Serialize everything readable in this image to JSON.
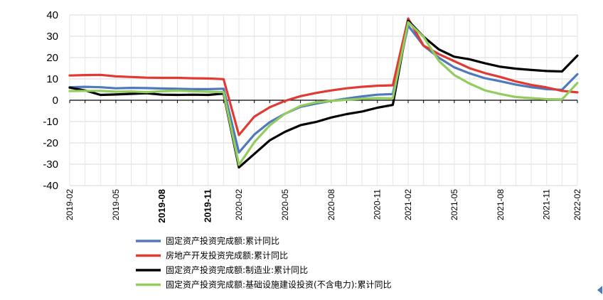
{
  "chart_data": {
    "type": "line",
    "x": [
      "2019-02",
      "2019-03",
      "2019-04",
      "2019-05",
      "2019-06",
      "2019-07",
      "2019-08",
      "2019-09",
      "2019-10",
      "2019-11",
      "2019-12",
      "2020-02",
      "2020-03",
      "2020-04",
      "2020-05",
      "2020-06",
      "2020-07",
      "2020-08",
      "2020-09",
      "2020-10",
      "2020-11",
      "2020-12",
      "2021-02",
      "2021-03",
      "2021-04",
      "2021-05",
      "2021-06",
      "2021-07",
      "2021-08",
      "2021-09",
      "2021-10",
      "2021-11",
      "2021-12",
      "2022-02"
    ],
    "x_tick_labels": [
      "2019-02",
      "2019-05",
      "2019-08",
      "2019-11",
      "2020-02",
      "2020-05",
      "2020-08",
      "2020-11",
      "2021-02",
      "2021-05",
      "2021-08",
      "2021-11",
      "2022-02"
    ],
    "bold_tick_labels": [
      "2019-08",
      "2019-11"
    ],
    "ylim": [
      -40,
      40
    ],
    "y_ticks": [
      -40,
      -30,
      -20,
      -10,
      0,
      10,
      20,
      30,
      40
    ],
    "grid": true,
    "legend_position": "bottom",
    "series": [
      {
        "name": "固定资产投资完成额:累计同比",
        "color": "#4f79bd",
        "values": [
          6.1,
          6.3,
          6.1,
          5.6,
          5.8,
          5.7,
          5.5,
          5.4,
          5.2,
          5.2,
          5.4,
          -24.5,
          -16.1,
          -10.3,
          -6.3,
          -3.1,
          -1.6,
          -0.3,
          0.8,
          1.8,
          2.6,
          2.9,
          35.0,
          25.6,
          19.9,
          15.4,
          12.6,
          10.3,
          8.9,
          7.3,
          6.1,
          5.2,
          4.9,
          12.2
        ]
      },
      {
        "name": "房地产开发投资完成额:累计同比",
        "color": "#e03a32",
        "values": [
          11.6,
          11.8,
          11.9,
          11.2,
          10.9,
          10.6,
          10.5,
          10.5,
          10.3,
          10.2,
          9.9,
          -16.3,
          -7.7,
          -3.3,
          -0.3,
          1.9,
          3.4,
          4.6,
          5.6,
          6.3,
          6.8,
          7.0,
          38.3,
          25.6,
          21.6,
          18.3,
          15.0,
          12.7,
          10.9,
          8.8,
          7.2,
          6.0,
          4.4,
          3.7
        ]
      },
      {
        "name": "固定资产投资完成额:制造业:累计同比",
        "color": "#000000",
        "values": [
          5.9,
          4.6,
          2.5,
          2.7,
          3.0,
          3.3,
          2.6,
          2.5,
          2.6,
          2.5,
          3.1,
          -31.5,
          -25.2,
          -18.8,
          -14.8,
          -11.7,
          -10.2,
          -8.1,
          -6.5,
          -5.3,
          -3.5,
          -2.2,
          37.3,
          29.8,
          23.8,
          20.4,
          19.2,
          17.3,
          15.7,
          14.8,
          14.2,
          13.7,
          13.5,
          20.9
        ]
      },
      {
        "name": "固定资产投资完成额:基础设施建设投资(不含电力):累计同比",
        "color": "#92cc5e",
        "values": [
          4.3,
          4.4,
          4.4,
          4.0,
          4.1,
          3.8,
          4.2,
          4.5,
          4.2,
          4.0,
          3.8,
          -30.3,
          -19.7,
          -11.8,
          -6.3,
          -2.7,
          -1.0,
          -0.3,
          0.2,
          0.7,
          1.0,
          0.9,
          36.6,
          29.7,
          18.4,
          11.8,
          7.8,
          4.6,
          2.9,
          1.5,
          1.0,
          0.5,
          0.4,
          8.1
        ]
      }
    ]
  }
}
